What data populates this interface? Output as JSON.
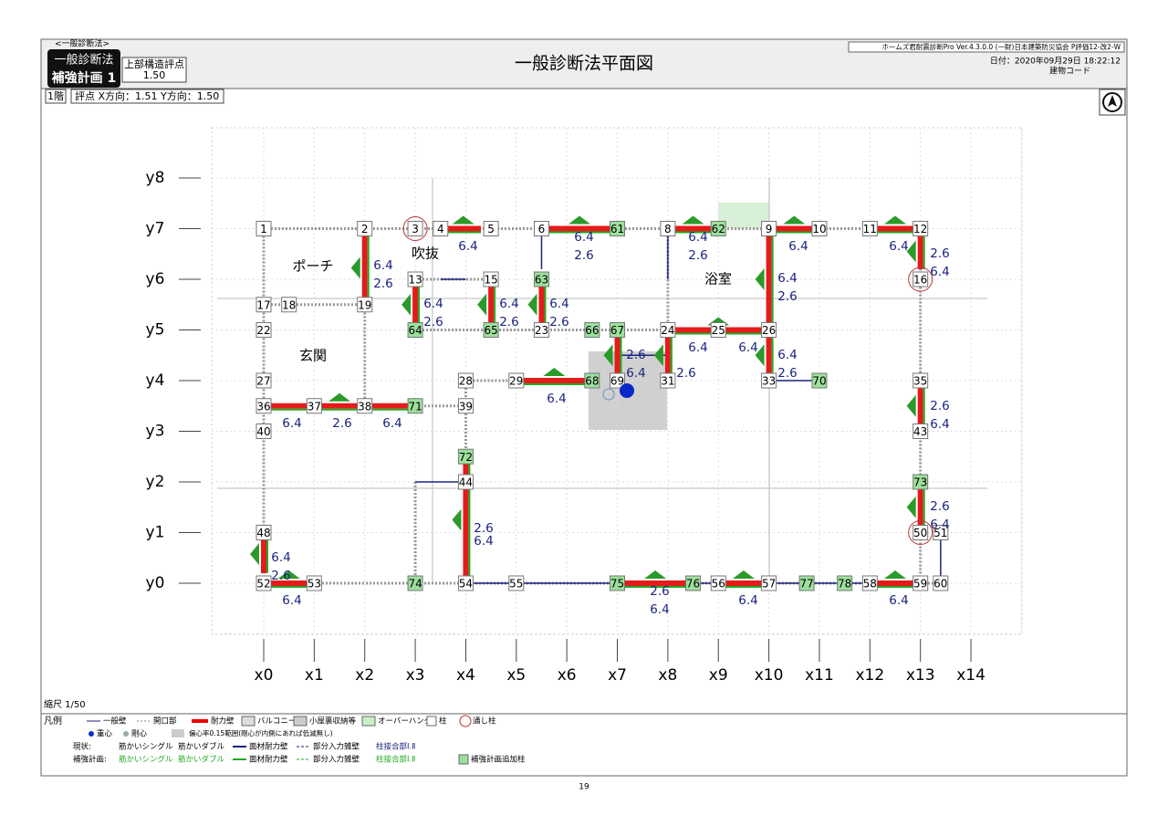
{
  "header": {
    "tag": "<一般診断法>",
    "method": "一般診断法",
    "plan": "補強計画 1",
    "score_label": "上部構造評点",
    "score": "1.50",
    "title": "一般診断法平面図",
    "software": "ホームズ君耐震診断Pro Ver.4.3.0.0 (一財)日本建築防災協会 P評価12-改2-W",
    "date": "日付：2020年09月29日 18:22:12",
    "building_code": "建物コード"
  },
  "floor_info": {
    "floor": "1階",
    "score": "評点 X方向：1.51  Y方向：1.50"
  },
  "grid": {
    "x_labels": [
      "x0",
      "x1",
      "x2",
      "x3",
      "x4",
      "x5",
      "x6",
      "x7",
      "x8",
      "x9",
      "x10",
      "x11",
      "x12",
      "x13",
      "x14"
    ],
    "y_labels": [
      "y0",
      "y1",
      "y2",
      "y3",
      "y4",
      "y5",
      "y6",
      "y7",
      "y8"
    ]
  },
  "rooms": [
    "ポーチ",
    "吹抜",
    "浴室",
    "玄関"
  ],
  "nodes": [
    "1",
    "2",
    "3",
    "4",
    "5",
    "6",
    "61",
    "8",
    "62",
    "9",
    "10",
    "11",
    "12",
    "16",
    "13",
    "15",
    "63",
    "17",
    "18",
    "19",
    "22",
    "64",
    "65",
    "23",
    "66",
    "67",
    "24",
    "25",
    "26",
    "27",
    "28",
    "29",
    "68",
    "69",
    "31",
    "33",
    "70",
    "35",
    "36",
    "37",
    "38",
    "71",
    "39",
    "40",
    "43",
    "72",
    "44",
    "73",
    "48",
    "50",
    "51",
    "52",
    "53",
    "74",
    "54",
    "55",
    "75",
    "76",
    "56",
    "57",
    "77",
    "78",
    "58",
    "59",
    "60"
  ],
  "wall_values": [
    "6.4",
    "6.4",
    "2.6",
    "6.4",
    "2.6",
    "6.4",
    "6.4",
    "2.6",
    "6.4",
    "6.4",
    "2.6",
    "6.4",
    "2.6",
    "6.4",
    "2.6",
    "6.4",
    "2.6",
    "6.4",
    "2.6",
    "2.6",
    "6.4",
    "6.4",
    "2.6",
    "6.4",
    "6.4",
    "2.6",
    "6.4",
    "6.4",
    "2.6",
    "6.4",
    "2.6",
    "6.4",
    "2.6",
    "6.4",
    "2.6",
    "6.4",
    "6.4",
    "2.6",
    "6.4",
    "2.6",
    "6.4",
    "6.4",
    "6.4"
  ],
  "scale": "縮尺 1/50",
  "legend": {
    "title": "凡例",
    "general_wall": "一般壁",
    "opening": "開口部",
    "bearing_wall": "耐力壁",
    "balcony": "バルコニー",
    "attic": "小屋裏収納等",
    "overhang": "オーバーハング",
    "column": "柱",
    "through_column": "通し柱",
    "center_gravity": "重心",
    "center_rigidity": "剛心",
    "eccentricity": "偏心率0.15範囲(剛心が内側にあれば低減無し)",
    "current": "現状:",
    "brace_single": "筋かいシングル",
    "brace_double": "筋かいダブル",
    "panel_wall": "面材耐力壁",
    "partial_wall": "部分入力雑壁",
    "joint": "柱接合部Ⅰ.Ⅱ",
    "plan": "補強計画:",
    "plan_brace_single": "筋かいシングル",
    "plan_brace_double": "筋かいダブル",
    "plan_panel_wall": "面材耐力壁",
    "plan_partial_wall": "部分入力雑壁",
    "plan_joint": "柱接合部Ⅰ.Ⅱ",
    "added_column": "補強計画追加柱"
  },
  "page_number": "19"
}
